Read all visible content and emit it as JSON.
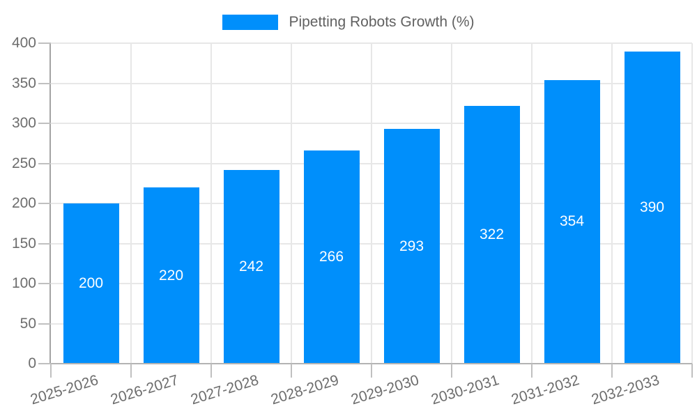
{
  "colors": {
    "bar": "#008FFB",
    "grid_line": "#e7e7e7",
    "y_axis_line": "#a3a3a3",
    "x_axis_line": "#b3b3b3",
    "tick": "#c0c0c0",
    "axis_label_text": "#6d6d6d",
    "legend_text": "#616161",
    "bar_value_text": "#ffffff",
    "background": "#ffffff"
  },
  "legend": {
    "label": "Pipetting Robots Growth (%)",
    "marker_color": "#008FFB",
    "position": "top"
  },
  "chart_data": {
    "type": "bar",
    "title": "Pipetting Robots Growth (%)",
    "series_name": "Pipetting Robots Growth (%)",
    "categories": [
      "2025-2026",
      "2026-2027",
      "2027-2028",
      "2028-2029",
      "2029-2030",
      "2030-2031",
      "2031-2032",
      "2032-2033"
    ],
    "values": [
      200,
      220,
      242,
      266,
      293,
      322,
      354,
      390
    ],
    "bar_labels": [
      200,
      220,
      242,
      266,
      293,
      322,
      354,
      390
    ],
    "xlabel": "",
    "ylabel": "",
    "ylim": [
      0,
      400
    ],
    "ytick_step": 50,
    "yticks": [
      0,
      50,
      100,
      150,
      200,
      250,
      300,
      350,
      400
    ],
    "grid": true,
    "legend_position": "top",
    "x_label_rotation_deg": -17
  }
}
